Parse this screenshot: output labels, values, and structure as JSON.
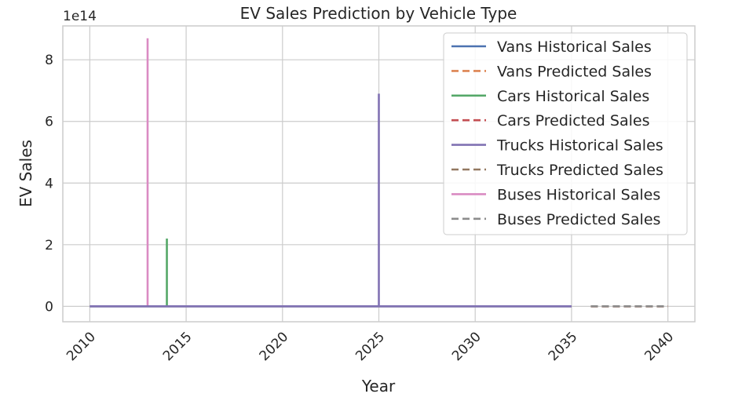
{
  "chart_data": {
    "type": "line",
    "title": "EV Sales Prediction by Vehicle Type",
    "xlabel": "Year",
    "ylabel": "EV Sales",
    "y_multiplier_label": "1e14",
    "xlim": [
      2008.6,
      2041.4
    ],
    "ylim": [
      -0.5,
      9.1
    ],
    "y_unit": 100000000000000.0,
    "x_ticks": [
      2010,
      2015,
      2020,
      2025,
      2030,
      2035,
      2040
    ],
    "y_ticks": [
      0,
      2,
      4,
      6,
      8
    ],
    "grid": true,
    "legend_position": "top-right",
    "series": [
      {
        "name": "Vans Historical Sales",
        "color": "#4c72b0",
        "style": "solid",
        "x": [
          2010,
          2035
        ],
        "y": [
          0,
          0
        ]
      },
      {
        "name": "Vans Predicted Sales",
        "color": "#dd8452",
        "style": "dashed",
        "x": [
          2036,
          2040
        ],
        "y": [
          0,
          0
        ]
      },
      {
        "name": "Cars Historical Sales",
        "color": "#55a868",
        "style": "solid",
        "x": [
          2010,
          2014,
          2014,
          2014,
          2035
        ],
        "y": [
          0,
          0,
          2.2,
          0,
          0
        ]
      },
      {
        "name": "Cars Predicted Sales",
        "color": "#c44e52",
        "style": "dashed",
        "x": [
          2036,
          2040
        ],
        "y": [
          0,
          0
        ]
      },
      {
        "name": "Trucks Historical Sales",
        "color": "#8172b3",
        "style": "solid",
        "x": [
          2010,
          2025,
          2025,
          2025,
          2035
        ],
        "y": [
          0,
          0,
          6.9,
          0,
          0
        ]
      },
      {
        "name": "Trucks Predicted Sales",
        "color": "#937860",
        "style": "dashed",
        "x": [
          2036,
          2040
        ],
        "y": [
          0,
          0
        ]
      },
      {
        "name": "Buses Historical Sales",
        "color": "#da8bc3",
        "style": "solid",
        "x": [
          2010,
          2013,
          2013,
          2013,
          2035
        ],
        "y": [
          0,
          0,
          8.7,
          0,
          0
        ]
      },
      {
        "name": "Buses Predicted Sales",
        "color": "#8c8c8c",
        "style": "dashed",
        "x": [
          2036,
          2040
        ],
        "y": [
          0,
          0
        ]
      }
    ]
  }
}
